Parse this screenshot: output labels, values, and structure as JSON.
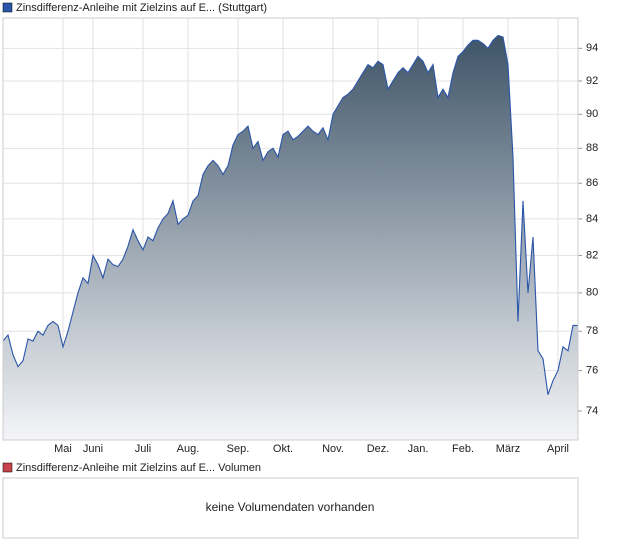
{
  "chart_data": {
    "type": "area",
    "series": [
      {
        "name": "Zinsdifferenz-Anleihe mit Zielzins auf E... (Stuttgart)",
        "color": "#2b55a8",
        "values": [
          77.5,
          77.8,
          76.8,
          76.2,
          76.5,
          77.6,
          77.5,
          78.0,
          77.8,
          78.3,
          78.5,
          78.3,
          77.2,
          78.0,
          79.0,
          80.0,
          80.8,
          80.5,
          82.0,
          81.5,
          80.8,
          81.8,
          81.5,
          81.4,
          81.8,
          82.5,
          83.4,
          82.8,
          82.3,
          83.0,
          82.8,
          83.5,
          84.0,
          84.3,
          85.0,
          83.7,
          84.0,
          84.2,
          85.0,
          85.3,
          86.5,
          87.0,
          87.3,
          87.0,
          86.5,
          87.0,
          88.2,
          88.8,
          89.0,
          89.3,
          88.0,
          88.4,
          87.3,
          87.8,
          88.0,
          87.5,
          88.8,
          89.0,
          88.5,
          88.7,
          89.0,
          89.3,
          89.0,
          88.8,
          89.2,
          88.5,
          90.0,
          90.5,
          91.0,
          91.2,
          91.5,
          92.0,
          92.5,
          93.0,
          92.8,
          93.2,
          93.0,
          91.5,
          92.0,
          92.5,
          92.8,
          92.5,
          93.0,
          93.5,
          93.2,
          92.5,
          93.0,
          91.0,
          91.5,
          91.0,
          92.5,
          93.5,
          93.8,
          94.2,
          94.5,
          94.5,
          94.3,
          94.0,
          94.5,
          94.8,
          94.7,
          93.0,
          87.5,
          78.5,
          85.0,
          80.0,
          83.0,
          77.0,
          76.6,
          74.8,
          75.5,
          76.0,
          77.2,
          77.0,
          78.3,
          78.3
        ]
      }
    ],
    "categories": [
      null,
      null,
      null,
      null,
      null,
      null,
      null,
      null,
      null,
      null,
      null,
      null,
      "Mai",
      null,
      null,
      null,
      null,
      null,
      "Juni",
      null,
      null,
      null,
      null,
      null,
      null,
      null,
      null,
      null,
      "Juli",
      null,
      null,
      null,
      null,
      null,
      null,
      null,
      null,
      "Aug.",
      null,
      null,
      null,
      null,
      null,
      null,
      null,
      null,
      null,
      "Sep.",
      null,
      null,
      null,
      null,
      null,
      null,
      null,
      null,
      "Okt.",
      null,
      null,
      null,
      null,
      null,
      null,
      null,
      null,
      null,
      "Nov.",
      null,
      null,
      null,
      null,
      null,
      null,
      null,
      null,
      "Dez.",
      null,
      null,
      null,
      null,
      null,
      null,
      null,
      "Jan.",
      null,
      null,
      null,
      null,
      null,
      null,
      null,
      null,
      "Feb.",
      null,
      null,
      null,
      null,
      null,
      null,
      null,
      null,
      "März",
      null,
      null,
      null,
      null,
      null,
      null,
      null,
      null,
      null,
      "April",
      null,
      null,
      null,
      null
    ],
    "ylim": [
      72.6,
      95.9
    ],
    "yticks": [
      74,
      76,
      78,
      80,
      82,
      84,
      86,
      88,
      90,
      92,
      94
    ],
    "ylog": true,
    "grid": true
  },
  "volume_panel": {
    "legend": "Zinsdifferenz-Anleihe mit Zielzins auf E... Volumen",
    "color": "#c8444c",
    "message": "keine Volumendaten vorhanden"
  }
}
